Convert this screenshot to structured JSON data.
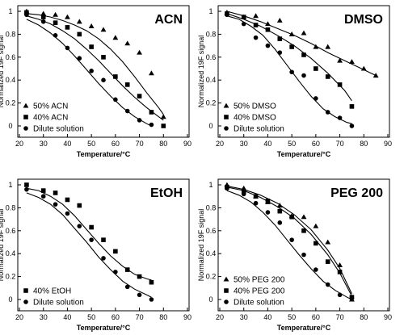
{
  "chart_data": [
    {
      "type": "scatter",
      "title": "ACN",
      "xlabel": "Temperature/°C",
      "ylabel": "Normalized 19F signal",
      "xlim": [
        20,
        90
      ],
      "ylim": [
        0,
        1
      ],
      "xticks": [
        20,
        30,
        40,
        50,
        60,
        70,
        80,
        90
      ],
      "yticks": [
        0,
        0.2,
        0.4,
        0.6,
        0.8,
        1
      ],
      "legend_position": "bottom-left",
      "series": [
        {
          "name": "50% ACN",
          "marker": "triangle",
          "x": [
            23,
            30,
            35,
            40,
            45,
            50,
            55,
            60,
            65,
            70,
            75,
            80
          ],
          "y": [
            1.0,
            0.98,
            0.97,
            0.95,
            0.91,
            0.87,
            0.84,
            0.77,
            0.72,
            0.64,
            0.46,
            0.08
          ],
          "fit_x": [
            23,
            28,
            33,
            38,
            43,
            48,
            53,
            58,
            63,
            68,
            73,
            78,
            80
          ],
          "fit_y": [
            0.98,
            0.97,
            0.95,
            0.92,
            0.88,
            0.83,
            0.76,
            0.67,
            0.56,
            0.43,
            0.29,
            0.16,
            0.1
          ]
        },
        {
          "name": "40% ACN",
          "marker": "square",
          "x": [
            23,
            30,
            35,
            40,
            45,
            50,
            55,
            60,
            65,
            70,
            75,
            80
          ],
          "y": [
            0.99,
            0.95,
            0.9,
            0.86,
            0.8,
            0.69,
            0.6,
            0.43,
            0.36,
            0.26,
            0.12,
            0.0
          ],
          "fit_x": [
            23,
            28,
            33,
            38,
            43,
            48,
            53,
            58,
            63,
            68,
            73,
            78,
            80
          ],
          "fit_y": [
            0.96,
            0.93,
            0.89,
            0.83,
            0.76,
            0.67,
            0.57,
            0.46,
            0.35,
            0.25,
            0.16,
            0.08,
            0.05
          ]
        },
        {
          "name": "Dilute solution",
          "marker": "circle",
          "x": [
            23,
            30,
            35,
            40,
            45,
            50,
            55,
            60,
            65,
            70,
            75
          ],
          "y": [
            0.97,
            0.91,
            0.79,
            0.68,
            0.59,
            0.48,
            0.4,
            0.23,
            0.13,
            0.05,
            0.01
          ],
          "fit_x": [
            23,
            28,
            33,
            38,
            43,
            48,
            53,
            58,
            63,
            68,
            73,
            75
          ],
          "fit_y": [
            0.93,
            0.88,
            0.81,
            0.72,
            0.61,
            0.49,
            0.37,
            0.26,
            0.16,
            0.08,
            0.02,
            0.0
          ]
        }
      ]
    },
    {
      "type": "scatter",
      "title": "DMSO",
      "xlabel": "Temperature/°C",
      "ylabel": "Normalized 19F signal",
      "xlim": [
        20,
        90
      ],
      "ylim": [
        0,
        1
      ],
      "xticks": [
        20,
        30,
        40,
        50,
        60,
        70,
        80,
        90
      ],
      "yticks": [
        0,
        0.2,
        0.4,
        0.6,
        0.8,
        1
      ],
      "legend_position": "bottom-left",
      "series": [
        {
          "name": "50% DMSO",
          "marker": "triangle",
          "x": [
            23,
            30,
            35,
            40,
            45,
            50,
            55,
            60,
            65,
            70,
            75,
            80,
            85
          ],
          "y": [
            0.99,
            0.95,
            0.96,
            0.89,
            0.92,
            0.8,
            0.81,
            0.69,
            0.69,
            0.57,
            0.56,
            0.5,
            0.44
          ],
          "fit_x": [
            23,
            30,
            37,
            44,
            51,
            58,
            65,
            72,
            79,
            85
          ],
          "fit_y": [
            1.0,
            0.96,
            0.91,
            0.85,
            0.79,
            0.72,
            0.64,
            0.57,
            0.5,
            0.44
          ]
        },
        {
          "name": "40% DMSO",
          "marker": "square",
          "x": [
            23,
            30,
            35,
            40,
            45,
            50,
            55,
            60,
            65,
            70,
            75
          ],
          "y": [
            0.98,
            0.95,
            0.88,
            0.84,
            0.76,
            0.69,
            0.62,
            0.5,
            0.43,
            0.36,
            0.17
          ],
          "fit_x": [
            23,
            30,
            37,
            44,
            51,
            58,
            65,
            72,
            75
          ],
          "fit_y": [
            0.98,
            0.93,
            0.87,
            0.79,
            0.7,
            0.59,
            0.46,
            0.31,
            0.22
          ]
        },
        {
          "name": "Dilute solution",
          "marker": "circle",
          "x": [
            23,
            30,
            35,
            40,
            45,
            50,
            55,
            60,
            65,
            70,
            75
          ],
          "y": [
            0.97,
            0.89,
            0.77,
            0.7,
            0.64,
            0.47,
            0.44,
            0.24,
            0.12,
            0.07,
            0.0
          ],
          "fit_x": [
            23,
            28,
            33,
            38,
            43,
            48,
            53,
            58,
            63,
            68,
            73,
            75
          ],
          "fit_y": [
            0.96,
            0.93,
            0.87,
            0.79,
            0.67,
            0.53,
            0.39,
            0.26,
            0.15,
            0.08,
            0.03,
            0.02
          ]
        }
      ]
    },
    {
      "type": "scatter",
      "title": "EtOH",
      "xlabel": "Temperature/°C",
      "ylabel": "Normalized 19F signal",
      "xlim": [
        20,
        90
      ],
      "ylim": [
        0,
        1
      ],
      "xticks": [
        20,
        30,
        40,
        50,
        60,
        70,
        80,
        90
      ],
      "yticks": [
        0,
        0.2,
        0.4,
        0.6,
        0.8,
        1
      ],
      "legend_position": "bottom-left",
      "series": [
        {
          "name": "40% EtOH",
          "marker": "square",
          "x": [
            23,
            30,
            35,
            40,
            45,
            50,
            55,
            60,
            65,
            70,
            75
          ],
          "y": [
            1.0,
            0.95,
            0.93,
            0.87,
            0.82,
            0.63,
            0.52,
            0.42,
            0.26,
            0.2,
            0.15
          ],
          "fit_x": [
            23,
            28,
            33,
            38,
            43,
            48,
            53,
            58,
            63,
            68,
            73,
            75
          ],
          "fit_y": [
            0.97,
            0.95,
            0.9,
            0.83,
            0.73,
            0.61,
            0.49,
            0.38,
            0.29,
            0.22,
            0.18,
            0.17
          ]
        },
        {
          "name": "Dilute solution",
          "marker": "circle",
          "x": [
            23,
            30,
            35,
            40,
            45,
            50,
            55,
            60,
            65,
            70,
            75
          ],
          "y": [
            0.96,
            0.9,
            0.83,
            0.75,
            0.64,
            0.52,
            0.36,
            0.24,
            0.11,
            0.04,
            0.0
          ],
          "fit_x": [
            23,
            28,
            33,
            38,
            43,
            48,
            53,
            58,
            63,
            68,
            73,
            75
          ],
          "fit_y": [
            0.93,
            0.89,
            0.83,
            0.74,
            0.62,
            0.5,
            0.37,
            0.26,
            0.16,
            0.09,
            0.04,
            0.02
          ]
        }
      ]
    },
    {
      "type": "scatter",
      "title": "PEG 200",
      "xlabel": "Temperature/°C",
      "ylabel": "Normalized 19F signal",
      "xlim": [
        20,
        90
      ],
      "ylim": [
        0,
        1
      ],
      "xticks": [
        20,
        30,
        40,
        50,
        60,
        70,
        80,
        90
      ],
      "yticks": [
        0,
        0.2,
        0.4,
        0.6,
        0.8,
        1
      ],
      "legend_position": "bottom-left",
      "series": [
        {
          "name": "50% PEG 200",
          "marker": "triangle",
          "x": [
            23,
            30,
            35,
            40,
            45,
            50,
            55,
            60,
            65,
            70,
            75
          ],
          "y": [
            1.0,
            0.97,
            0.9,
            0.85,
            0.82,
            0.73,
            0.72,
            0.64,
            0.5,
            0.3,
            0.0
          ],
          "fit_x": [
            23,
            30,
            37,
            44,
            51,
            58,
            65,
            70,
            75
          ],
          "fit_y": [
            0.99,
            0.96,
            0.91,
            0.84,
            0.74,
            0.61,
            0.43,
            0.27,
            0.05
          ]
        },
        {
          "name": "40% PEG 200",
          "marker": "square",
          "x": [
            23,
            30,
            35,
            40,
            45,
            50,
            55,
            60,
            65,
            70,
            75
          ],
          "y": [
            0.98,
            0.94,
            0.9,
            0.86,
            0.77,
            0.72,
            0.6,
            0.49,
            0.33,
            0.24,
            0.02
          ],
          "fit_x": [
            23,
            30,
            37,
            44,
            51,
            58,
            65,
            70,
            75
          ],
          "fit_y": [
            0.98,
            0.95,
            0.89,
            0.81,
            0.71,
            0.57,
            0.39,
            0.23,
            0.03
          ]
        },
        {
          "name": "Dilute solution",
          "marker": "circle",
          "x": [
            23,
            30,
            35,
            40,
            45,
            50,
            55,
            60,
            65,
            70,
            75
          ],
          "y": [
            0.97,
            0.92,
            0.84,
            0.76,
            0.67,
            0.52,
            0.39,
            0.26,
            0.13,
            0.04,
            0.01
          ],
          "fit_x": [
            23,
            28,
            33,
            38,
            43,
            48,
            53,
            58,
            63,
            68,
            73,
            75
          ],
          "fit_y": [
            0.95,
            0.91,
            0.85,
            0.76,
            0.65,
            0.52,
            0.39,
            0.27,
            0.16,
            0.08,
            0.02,
            0.0
          ]
        }
      ]
    }
  ]
}
